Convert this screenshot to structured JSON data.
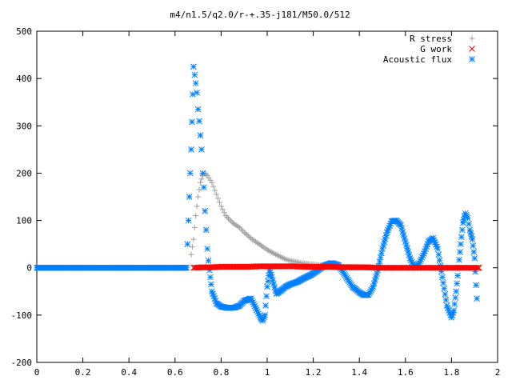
{
  "chart_data": {
    "type": "scatter",
    "title": "m4/n1.5/q2.0/r-+.35-j181/M50.0/512",
    "xlabel": "",
    "ylabel": "",
    "xlim": [
      0,
      2
    ],
    "ylim": [
      -200,
      500
    ],
    "x_ticks": [
      "0",
      "0.2",
      "0.4",
      "0.6",
      "0.8",
      "1",
      "1.2",
      "1.4",
      "1.6",
      "1.8",
      "2"
    ],
    "y_ticks": [
      "500",
      "400",
      "300",
      "200",
      "100",
      "0",
      "-100",
      "-200"
    ],
    "grid": false,
    "legend_position": "top-right",
    "series": [
      {
        "name": "R stress",
        "marker": "plus",
        "color": "#a0a0a0",
        "x": [
          0.67,
          0.68,
          0.69,
          0.7,
          0.71,
          0.72,
          0.73,
          0.74,
          0.76,
          0.78,
          0.8,
          0.82,
          0.85,
          0.88,
          0.9,
          0.93,
          0.95,
          0.98,
          1.0,
          1.03,
          1.05,
          1.08,
          1.1,
          1.13,
          1.15,
          1.18,
          1.2,
          1.25,
          1.3,
          1.35,
          1.4,
          1.45,
          1.5
        ],
        "y": [
          28,
          60,
          110,
          150,
          180,
          195,
          200,
          195,
          180,
          155,
          130,
          110,
          95,
          85,
          75,
          62,
          55,
          45,
          38,
          30,
          25,
          18,
          15,
          12,
          10,
          8,
          7,
          4,
          3,
          2,
          1,
          0.5,
          0
        ]
      },
      {
        "name": "G work",
        "marker": "cross",
        "color": "#ff0000",
        "x": [
          0.68,
          0.72,
          0.76,
          0.8,
          0.84,
          0.88,
          0.92,
          0.96,
          1.0,
          1.04,
          1.08,
          1.12,
          1.16,
          1.2,
          1.24,
          1.28,
          1.32,
          1.36,
          1.4,
          1.44,
          1.48,
          1.52,
          1.56,
          1.6,
          1.64,
          1.68,
          1.72,
          1.76,
          1.8,
          1.84,
          1.88,
          1.92
        ],
        "y": [
          0,
          1,
          1,
          2,
          2,
          2,
          2,
          3,
          3,
          3,
          3,
          3,
          2,
          2,
          2,
          2,
          1,
          1,
          1,
          1,
          0,
          0,
          0,
          0,
          0,
          0,
          0,
          0,
          0,
          0,
          0,
          0
        ]
      },
      {
        "name": "Acoustic flux",
        "marker": "star",
        "color": "#0080ff",
        "x": [
          0.0,
          0.05,
          0.1,
          0.15,
          0.2,
          0.25,
          0.3,
          0.35,
          0.4,
          0.45,
          0.5,
          0.55,
          0.6,
          0.65,
          0.67,
          0.68,
          0.69,
          0.695,
          0.7,
          0.705,
          0.71,
          0.715,
          0.72,
          0.725,
          0.73,
          0.735,
          0.74,
          0.745,
          0.75,
          0.76,
          0.78,
          0.8,
          0.83,
          0.86,
          0.88,
          0.9,
          0.93,
          0.95,
          0.97,
          0.98,
          0.99,
          1.0,
          1.01,
          1.02,
          1.04,
          1.06,
          1.08,
          1.1,
          1.13,
          1.16,
          1.19,
          1.22,
          1.25,
          1.28,
          1.31,
          1.33,
          1.35,
          1.37,
          1.4,
          1.42,
          1.44,
          1.46,
          1.48,
          1.5,
          1.52,
          1.54,
          1.56,
          1.58,
          1.6,
          1.62,
          1.64,
          1.66,
          1.68,
          1.7,
          1.72,
          1.74,
          1.76,
          1.78,
          1.8,
          1.81,
          1.82,
          1.83,
          1.84,
          1.85,
          1.86,
          1.87,
          1.88,
          1.89,
          1.9,
          1.91
        ],
        "y": [
          0,
          0,
          0,
          0,
          0,
          0,
          0,
          0,
          0,
          0,
          0,
          0,
          0,
          0,
          250,
          425,
          390,
          370,
          335,
          310,
          280,
          250,
          200,
          170,
          120,
          80,
          40,
          15,
          -5,
          -50,
          -75,
          -82,
          -85,
          -84,
          -80,
          -70,
          -65,
          -85,
          -105,
          -112,
          -100,
          -40,
          -5,
          -20,
          -55,
          -48,
          -40,
          -35,
          -30,
          -22,
          -15,
          -5,
          5,
          10,
          5,
          -10,
          -25,
          -40,
          -52,
          -58,
          -57,
          -40,
          -5,
          40,
          75,
          98,
          100,
          90,
          55,
          20,
          0,
          10,
          30,
          55,
          63,
          40,
          -20,
          -80,
          -105,
          -90,
          -50,
          0,
          50,
          95,
          115,
          105,
          80,
          60,
          20,
          -65
        ]
      }
    ]
  }
}
